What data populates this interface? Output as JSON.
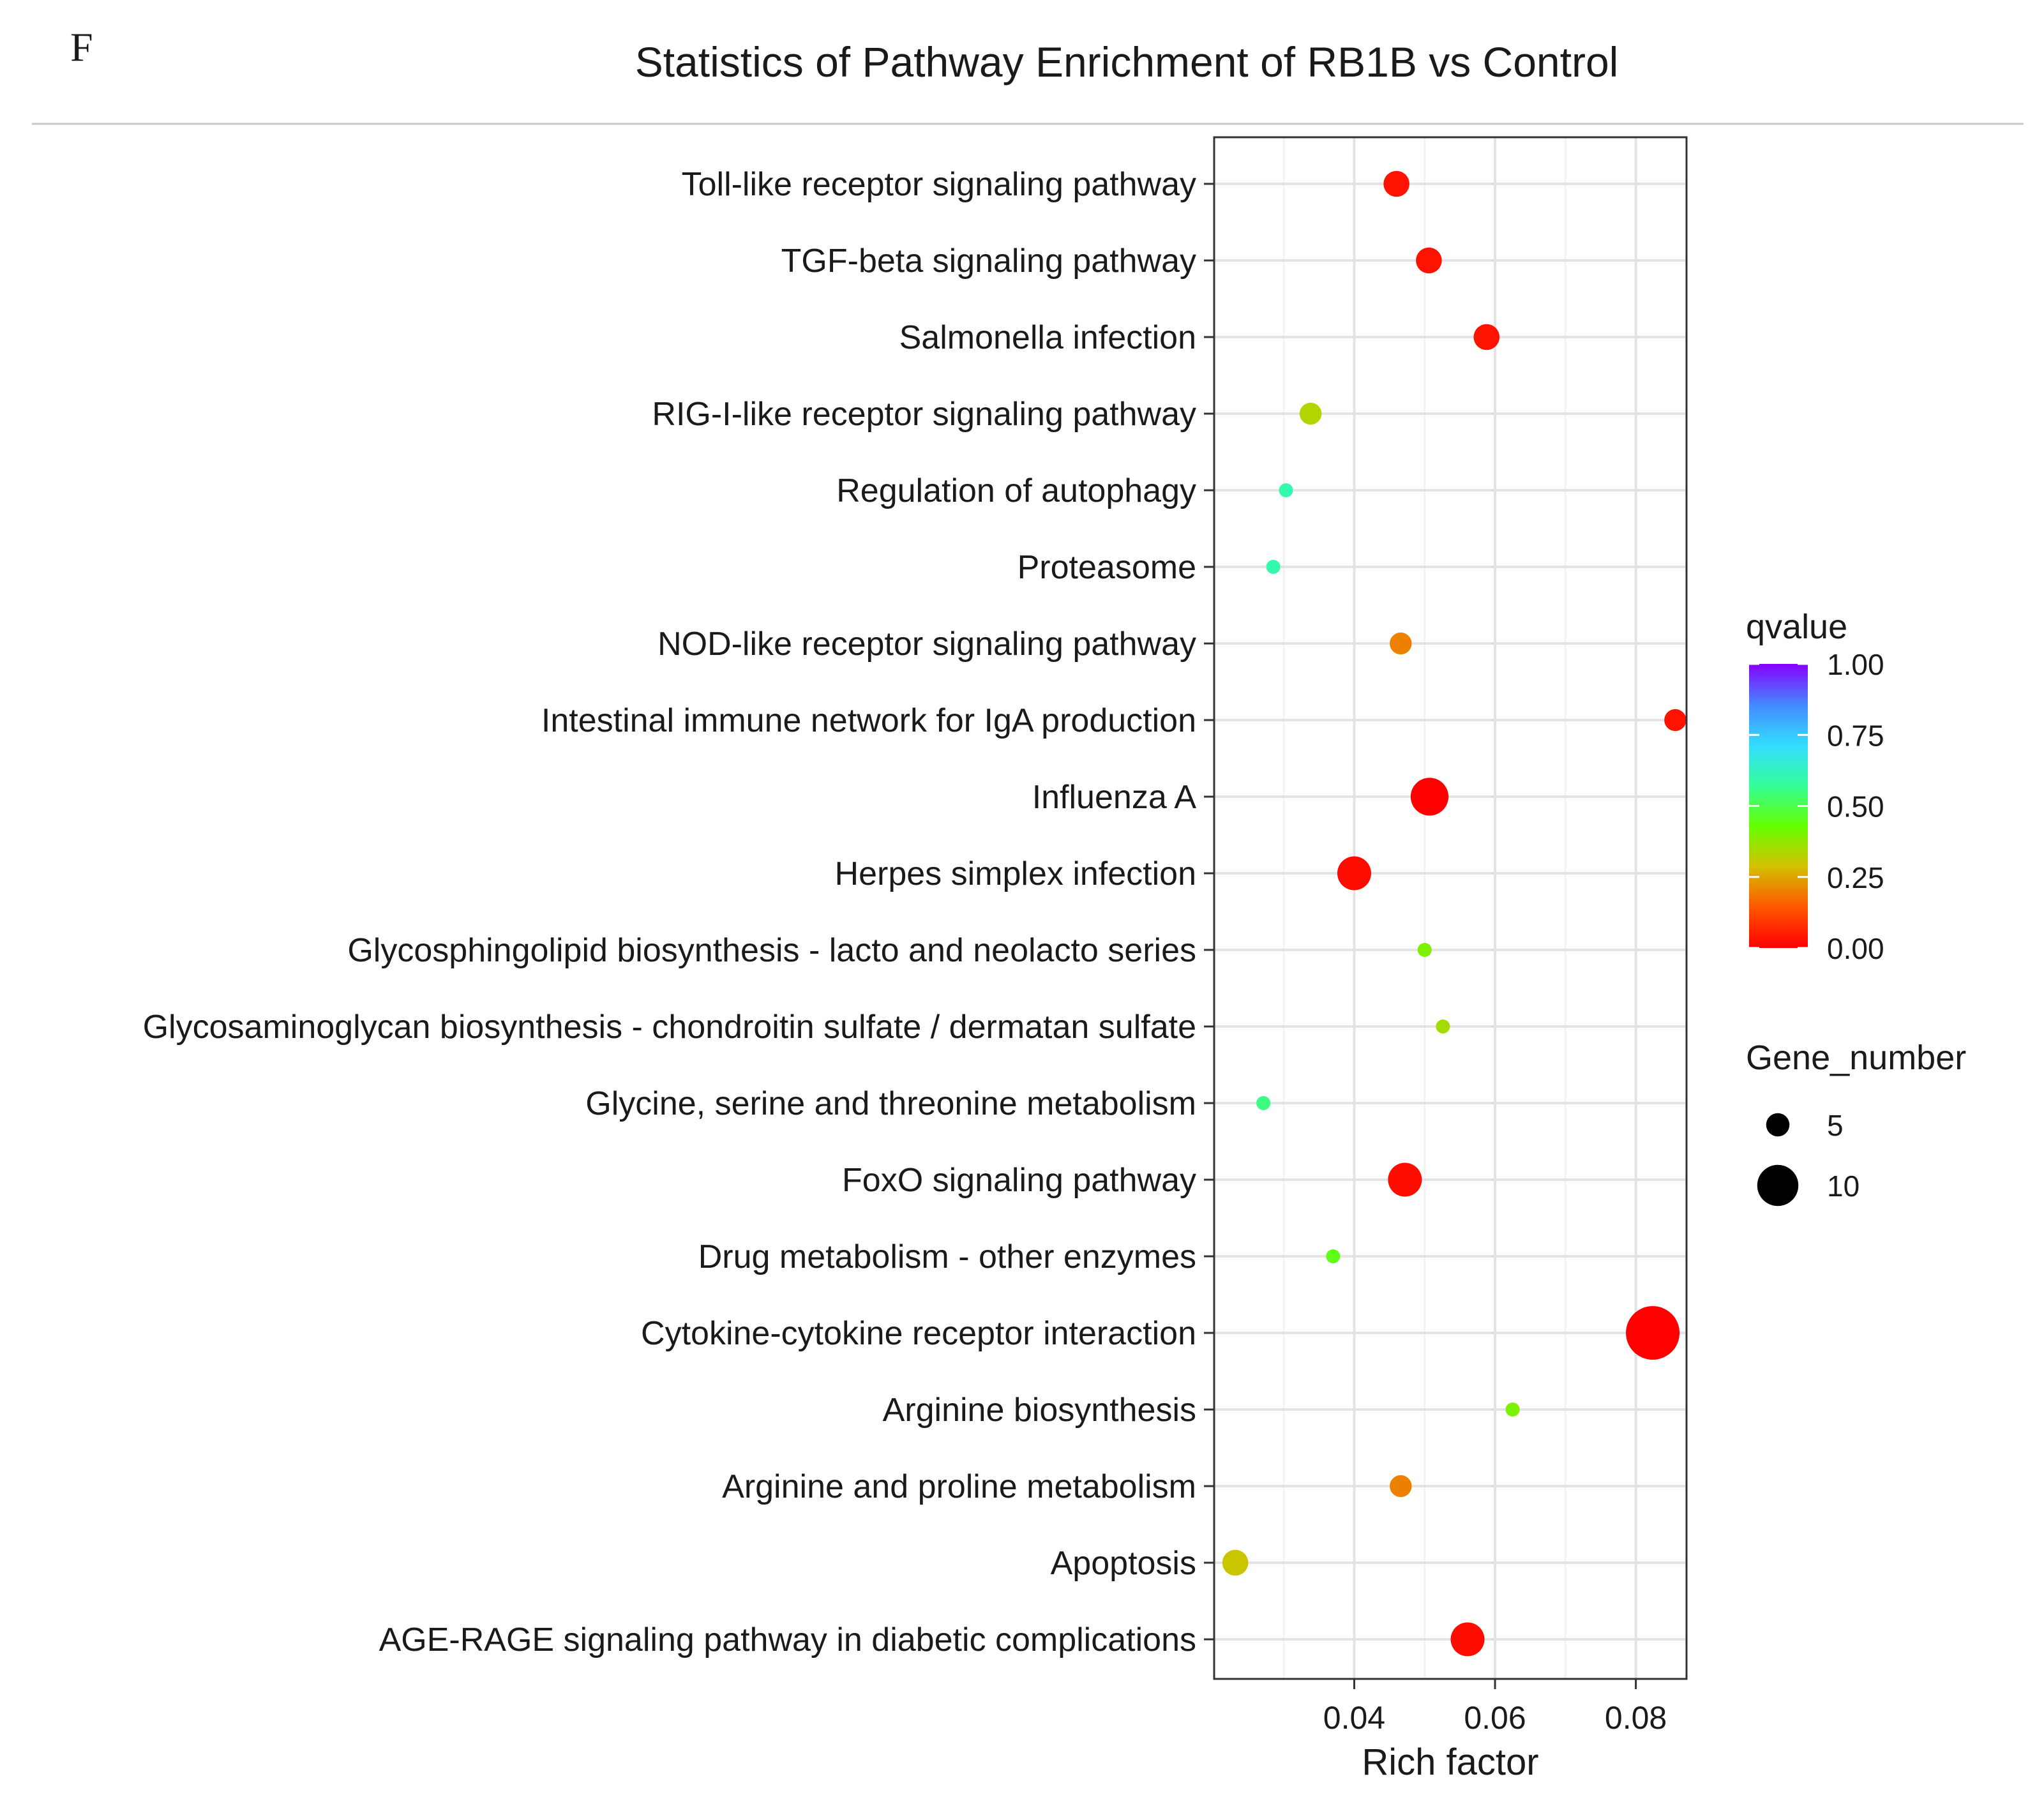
{
  "panel_letter": "F",
  "chart_data": {
    "type": "scatter",
    "title": "Statistics of Pathway Enrichment of RB1B vs Control",
    "xlabel": "Rich factor",
    "ylabel": "",
    "xlim": [
      0.0201,
      0.0872
    ],
    "xticks": [
      0.04,
      0.06,
      0.08
    ],
    "xtick_labels": [
      "0.04",
      "0.06",
      "0.08"
    ],
    "grid": true,
    "pathways": [
      "Toll-like receptor signaling pathway",
      "TGF-beta signaling pathway",
      "Salmonella infection",
      "RIG-I-like receptor signaling pathway",
      "Regulation of autophagy",
      "Proteasome",
      "NOD-like receptor signaling pathway",
      "Intestinal immune network for IgA production",
      "Influenza A",
      "Herpes simplex infection",
      "Glycosphingolipid biosynthesis - lacto and neolacto series",
      "Glycosaminoglycan biosynthesis - chondroitin sulfate / dermatan sulfate",
      "Glycine, serine and threonine metabolism",
      "FoxO signaling pathway",
      "Drug metabolism - other enzymes",
      "Cytokine-cytokine receptor interaction",
      "Arginine biosynthesis",
      "Arginine and proline metabolism",
      "Apoptosis",
      "AGE-RAGE signaling pathway in diabetic complications"
    ],
    "rich_factor": [
      0.046,
      0.0506,
      0.0588,
      0.0338,
      0.0303,
      0.0285,
      0.0466,
      0.0856,
      0.0507,
      0.04,
      0.05,
      0.0526,
      0.0271,
      0.0472,
      0.037,
      0.0824,
      0.0625,
      0.0466,
      0.0231,
      0.0561
    ],
    "gene_number": [
      5,
      5,
      5,
      4,
      2,
      2,
      4,
      4,
      8,
      7,
      2,
      2,
      2,
      7,
      2,
      12,
      2,
      4,
      5,
      7
    ],
    "qvalue": [
      0.03,
      0.03,
      0.03,
      0.33,
      0.6,
      0.6,
      0.2,
      0.03,
      0.0,
      0.02,
      0.4,
      0.35,
      0.55,
      0.02,
      0.45,
      0.0,
      0.4,
      0.2,
      0.3,
      0.02
    ],
    "legend_color": {
      "title": "qvalue",
      "ticks": [
        1.0,
        0.75,
        0.5,
        0.25,
        0.0
      ],
      "tick_labels": [
        "1.00",
        "0.75",
        "0.50",
        "0.25",
        "0.00"
      ],
      "colors": [
        "#ff0000",
        "#ff5500",
        "#d4c000",
        "#66ff00",
        "#33ff99",
        "#33ddff",
        "#4488ff",
        "#8800ff"
      ]
    },
    "legend_size": {
      "title": "Gene_number",
      "values": [
        5,
        10
      ],
      "labels": [
        "5",
        "10"
      ]
    },
    "legend_position": "right"
  }
}
